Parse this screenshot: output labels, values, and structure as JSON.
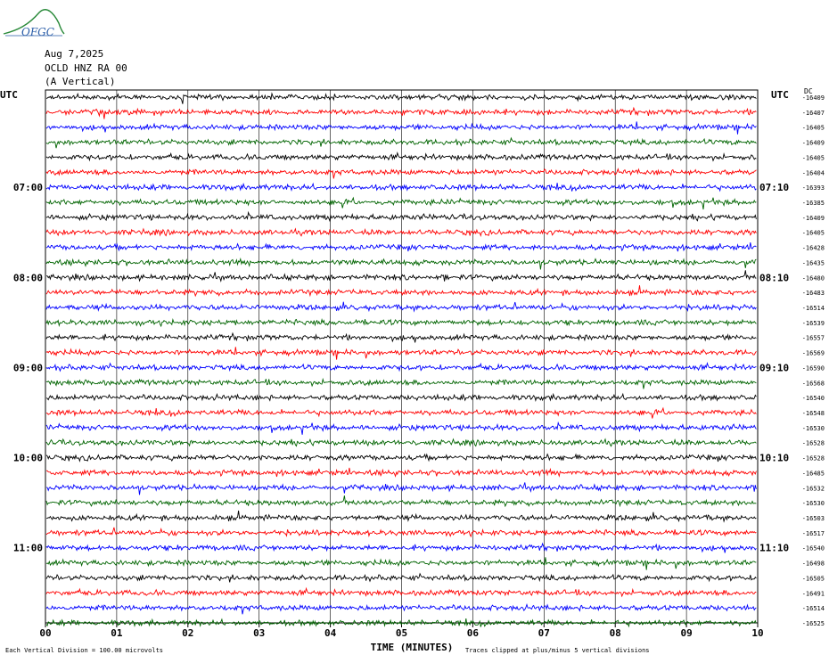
{
  "header": {
    "logo_text": "OFGC",
    "date": "Aug 7,2025",
    "station": "OCLD HNZ RA 00",
    "component": "(A Vertical)"
  },
  "colors": {
    "trace_cycle": [
      "#000000",
      "#ff0000",
      "#0000ff",
      "#006400"
    ],
    "grid": "#000000",
    "logo": "#2a5da8"
  },
  "chart_data": {
    "type": "line",
    "title": "",
    "xlabel": "TIME (MINUTES)",
    "xlim": [
      0,
      10
    ],
    "x_tick_labels": [
      "00",
      "01",
      "02",
      "03",
      "04",
      "05",
      "06",
      "07",
      "08",
      "09",
      "10"
    ],
    "left_axis_label": "UTC",
    "right_axis_label": "UTC",
    "right_dc_label": "DC",
    "left_hour_labels": [
      {
        "row": 6,
        "text": "07:00"
      },
      {
        "row": 12,
        "text": "08:00"
      },
      {
        "row": 18,
        "text": "09:00"
      },
      {
        "row": 24,
        "text": "10:00"
      },
      {
        "row": 30,
        "text": "11:00"
      }
    ],
    "right_hour_labels": [
      {
        "row": 6,
        "text": "07:10"
      },
      {
        "row": 12,
        "text": "08:10"
      },
      {
        "row": 18,
        "text": "09:10"
      },
      {
        "row": 24,
        "text": "10:10"
      },
      {
        "row": 30,
        "text": "11:10"
      }
    ],
    "trace_dc_offsets": [
      "-16409",
      "-16407",
      "-16405",
      "-16409",
      "-16405",
      "-16404",
      "-16393",
      "-16385",
      "-16409",
      "-16405",
      "-16428",
      "-16435",
      "-16480",
      "-16483",
      "-16514",
      "-16539",
      "-16557",
      "-16569",
      "-16590",
      "-16568",
      "-16540",
      "-16548",
      "-16530",
      "-16528",
      "-16528",
      "-16485",
      "-16532",
      "-16530",
      "-16503",
      "-16517",
      "-16540",
      "-16498",
      "-16505",
      "-16491",
      "-16514",
      "-16525"
    ],
    "traces_per_hour": 6,
    "minutes_per_trace": 10,
    "footer_scale_note": "Each Vertical Division =  100.00 microvolts",
    "footer_clip_note": "Traces clipped at plus/minus 5 vertical divisions"
  }
}
